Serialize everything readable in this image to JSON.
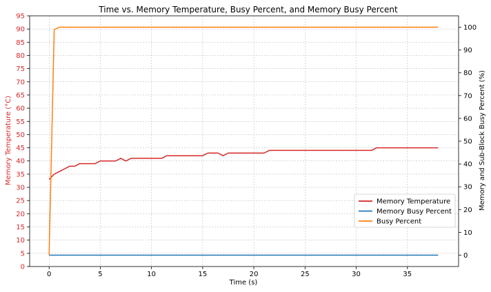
{
  "chart_data": {
    "type": "line",
    "title": "Time vs. Memory Temperature, Busy Percent, and Memory Busy Percent",
    "xlabel": "Time (s)",
    "ylabel_left": "Memory Temperature (°C)",
    "ylabel_right": "Memory and Sub-Block Busy Percent (%)",
    "xlim": [
      -1.9,
      40
    ],
    "ylim_left": [
      0,
      95
    ],
    "ylim_right": [
      -5,
      105
    ],
    "x_ticks": [
      0,
      5,
      10,
      15,
      20,
      25,
      30,
      35
    ],
    "y_ticks_left": [
      0,
      5,
      10,
      15,
      20,
      25,
      30,
      35,
      40,
      45,
      50,
      55,
      60,
      65,
      70,
      75,
      80,
      85,
      90,
      95
    ],
    "y_ticks_right": [
      0,
      10,
      20,
      30,
      40,
      50,
      60,
      70,
      80,
      90,
      100
    ],
    "grid": true,
    "legend_position": "lower-right",
    "left_axis_color": "#d62728",
    "series": [
      {
        "name": "Memory Temperature",
        "axis": "left",
        "color": "#d62728",
        "x": [
          0,
          0.5,
          1,
          1.5,
          2,
          2.5,
          3,
          3.5,
          4,
          4.5,
          5,
          5.5,
          6,
          6.5,
          7,
          7.5,
          8,
          8.5,
          9,
          9.5,
          10,
          10.5,
          11,
          11.5,
          12,
          12.5,
          13,
          13.5,
          14,
          14.5,
          15,
          15.5,
          16,
          16.5,
          17,
          17.5,
          18,
          18.5,
          19,
          19.5,
          20,
          20.5,
          21,
          21.5,
          22,
          22.5,
          23,
          23.5,
          24,
          24.5,
          25,
          25.5,
          26,
          26.5,
          27,
          27.5,
          28,
          28.5,
          29,
          29.5,
          30,
          30.5,
          31,
          31.5,
          32,
          32.5,
          33,
          33.5,
          34,
          34.5,
          35,
          35.5,
          36,
          36.5,
          37,
          37.5,
          38
        ],
        "values": [
          33,
          35,
          36,
          37,
          38,
          38,
          39,
          39,
          39,
          39,
          40,
          40,
          40,
          40,
          41,
          40,
          41,
          41,
          41,
          41,
          41,
          41,
          41,
          42,
          42,
          42,
          42,
          42,
          42,
          42,
          42,
          43,
          43,
          43,
          42,
          43,
          43,
          43,
          43,
          43,
          43,
          43,
          43,
          44,
          44,
          44,
          44,
          44,
          44,
          44,
          44,
          44,
          44,
          44,
          44,
          44,
          44,
          44,
          44,
          44,
          44,
          44,
          44,
          44,
          45,
          45,
          45,
          45,
          45,
          45,
          45,
          45,
          45,
          45,
          45,
          45,
          45
        ]
      },
      {
        "name": "Memory Busy Percent",
        "axis": "right",
        "color": "#1f77b4",
        "x": [
          0,
          38
        ],
        "values": [
          0,
          0
        ]
      },
      {
        "name": "Busy Percent",
        "axis": "right",
        "color": "#ff7f0e",
        "x": [
          0,
          0.5,
          1,
          38
        ],
        "values": [
          0,
          99,
          100,
          100
        ]
      }
    ]
  }
}
